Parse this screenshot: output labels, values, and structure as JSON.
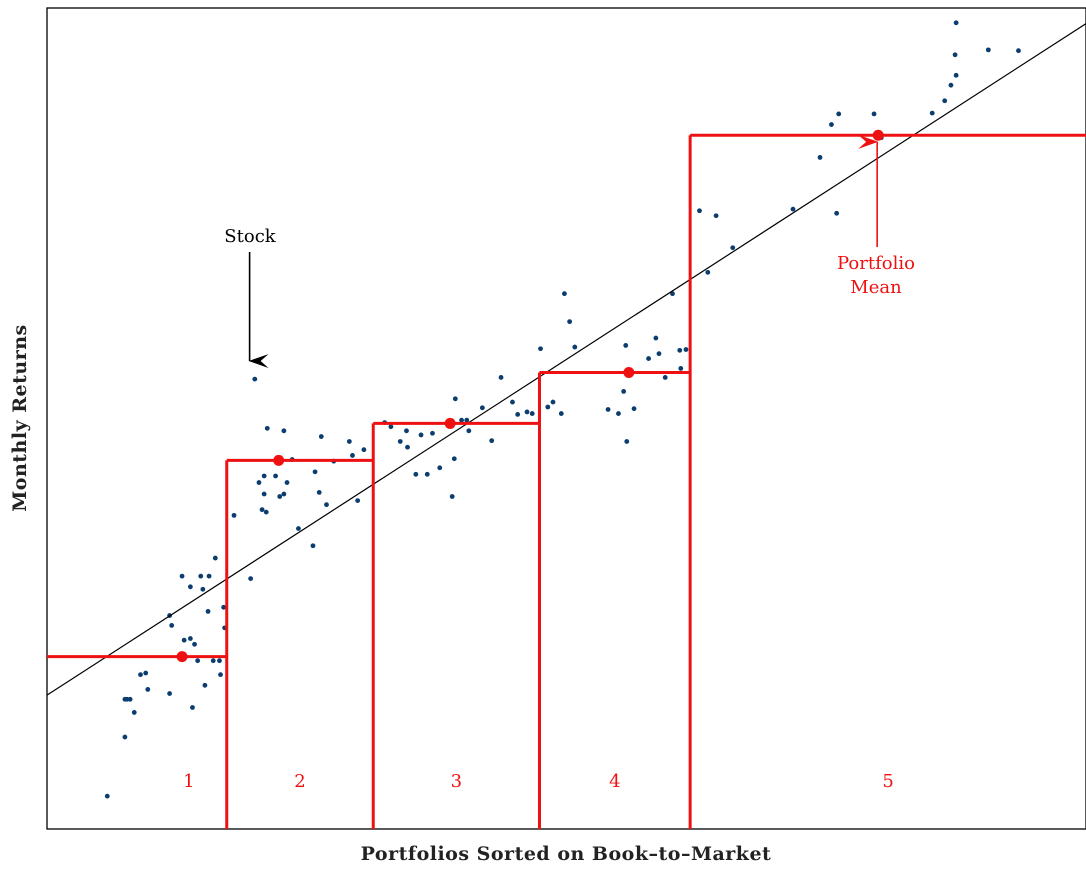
{
  "chart_data": {
    "type": "scatter",
    "title": "",
    "xlabel": "Portfolios Sorted on Book–to–Market",
    "ylabel": "Monthly Returns",
    "xlim": [
      0,
      10
    ],
    "ylim": [
      0,
      10
    ],
    "grid": false,
    "axis_ticks": false,
    "series": [
      {
        "kind": "points",
        "color": "#0b3d6e",
        "points": [
          [
            0.58,
            0.4
          ],
          [
            0.75,
            1.12
          ],
          [
            0.75,
            1.58
          ],
          [
            0.77,
            1.58
          ],
          [
            0.8,
            1.58
          ],
          [
            0.84,
            1.42
          ],
          [
            0.9,
            1.88
          ],
          [
            0.95,
            1.9
          ],
          [
            0.97,
            1.7
          ],
          [
            1.18,
            1.65
          ],
          [
            1.18,
            2.6
          ],
          [
            1.2,
            2.48
          ],
          [
            1.3,
            3.08
          ],
          [
            1.32,
            2.3
          ],
          [
            1.38,
            2.32
          ],
          [
            1.38,
            2.95
          ],
          [
            1.4,
            1.48
          ],
          [
            1.42,
            2.25
          ],
          [
            1.45,
            2.05
          ],
          [
            1.48,
            3.08
          ],
          [
            1.5,
            2.92
          ],
          [
            1.52,
            1.75
          ],
          [
            1.56,
            3.08
          ],
          [
            1.55,
            2.65
          ],
          [
            1.6,
            2.05
          ],
          [
            1.62,
            3.3
          ],
          [
            1.66,
            2.05
          ],
          [
            1.67,
            1.88
          ],
          [
            1.7,
            2.7
          ],
          [
            1.71,
            2.45
          ],
          [
            1.8,
            3.82
          ],
          [
            1.96,
            3.05
          ],
          [
            2.0,
            5.48
          ],
          [
            2.04,
            4.22
          ],
          [
            2.07,
            3.89
          ],
          [
            2.09,
            4.3
          ],
          [
            2.09,
            4.08
          ],
          [
            2.11,
            3.86
          ],
          [
            2.12,
            4.88
          ],
          [
            2.2,
            4.3
          ],
          [
            2.24,
            4.05
          ],
          [
            2.28,
            4.08
          ],
          [
            2.28,
            4.85
          ],
          [
            2.31,
            4.22
          ],
          [
            2.36,
            4.5
          ],
          [
            2.42,
            3.66
          ],
          [
            2.56,
            3.45
          ],
          [
            2.58,
            4.35
          ],
          [
            2.62,
            4.1
          ],
          [
            2.64,
            4.78
          ],
          [
            2.69,
            3.95
          ],
          [
            2.76,
            4.48
          ],
          [
            2.91,
            4.72
          ],
          [
            2.94,
            4.55
          ],
          [
            2.99,
            4.0
          ],
          [
            3.05,
            4.62
          ],
          [
            3.25,
            4.95
          ],
          [
            3.31,
            4.9
          ],
          [
            3.4,
            4.72
          ],
          [
            3.46,
            4.85
          ],
          [
            3.47,
            4.65
          ],
          [
            3.55,
            4.32
          ],
          [
            3.6,
            4.8
          ],
          [
            3.66,
            4.32
          ],
          [
            3.71,
            4.82
          ],
          [
            3.78,
            4.4
          ],
          [
            3.92,
            4.51
          ],
          [
            3.9,
            4.05
          ],
          [
            3.93,
            5.24
          ],
          [
            3.99,
            4.98
          ],
          [
            4.04,
            4.98
          ],
          [
            4.06,
            4.85
          ],
          [
            4.19,
            5.13
          ],
          [
            4.28,
            4.73
          ],
          [
            4.37,
            5.5
          ],
          [
            4.48,
            5.2
          ],
          [
            4.53,
            5.05
          ],
          [
            4.62,
            5.08
          ],
          [
            4.67,
            5.06
          ],
          [
            4.75,
            5.85
          ],
          [
            4.82,
            5.14
          ],
          [
            4.87,
            5.2
          ],
          [
            4.95,
            5.06
          ],
          [
            4.98,
            6.52
          ],
          [
            5.03,
            6.18
          ],
          [
            5.08,
            5.87
          ],
          [
            5.4,
            5.11
          ],
          [
            5.5,
            5.06
          ],
          [
            5.55,
            5.33
          ],
          [
            5.57,
            5.89
          ],
          [
            5.58,
            4.72
          ],
          [
            5.6,
            5.58
          ],
          [
            5.65,
            5.12
          ],
          [
            5.79,
            5.73
          ],
          [
            5.86,
            5.98
          ],
          [
            5.89,
            5.79
          ],
          [
            5.95,
            5.5
          ],
          [
            6.09,
            5.83
          ],
          [
            6.1,
            5.61
          ],
          [
            6.15,
            5.84
          ],
          [
            6.02,
            6.52
          ],
          [
            6.28,
            7.53
          ],
          [
            6.36,
            6.78
          ],
          [
            6.44,
            7.47
          ],
          [
            6.6,
            7.08
          ],
          [
            7.18,
            7.55
          ],
          [
            7.44,
            8.18
          ],
          [
            7.55,
            8.58
          ],
          [
            7.62,
            8.71
          ],
          [
            7.6,
            7.5
          ],
          [
            7.96,
            8.71
          ],
          [
            8.03,
            8.42
          ],
          [
            8.52,
            8.72
          ],
          [
            8.64,
            8.87
          ],
          [
            8.7,
            9.06
          ],
          [
            8.75,
            9.18
          ],
          [
            8.74,
            9.43
          ],
          [
            8.75,
            9.82
          ],
          [
            9.06,
            9.49
          ],
          [
            9.35,
            9.48
          ]
        ]
      }
    ],
    "fit_line": {
      "color": "#000000",
      "x": [
        0.0,
        10.0
      ],
      "y": [
        1.63,
        9.81
      ]
    },
    "portfolios": [
      {
        "label": "1",
        "x_start": 0.0,
        "x_end": 1.73,
        "mean": 2.1,
        "mean_x": 1.3
      },
      {
        "label": "2",
        "x_start": 1.73,
        "x_end": 3.14,
        "mean": 4.49,
        "mean_x": 2.23
      },
      {
        "label": "3",
        "x_start": 3.14,
        "x_end": 4.74,
        "mean": 4.94,
        "mean_x": 3.88
      },
      {
        "label": "4",
        "x_start": 4.74,
        "x_end": 6.19,
        "mean": 5.56,
        "mean_x": 5.6
      },
      {
        "label": "5",
        "x_start": 6.19,
        "x_end": 10.0,
        "mean": 8.45,
        "mean_x": 8.0
      }
    ],
    "portfolio_color": "#ee1111",
    "annotations": [
      {
        "text": "Stock",
        "color": "#000000",
        "target": [
          1.95,
          5.7
        ]
      },
      {
        "text": "Portfolio",
        "color": "#ee1111",
        "target": [
          7.99,
          8.37
        ]
      },
      {
        "text": "Mean",
        "color": "#ee1111",
        "target": [
          7.99,
          8.37
        ]
      }
    ]
  }
}
